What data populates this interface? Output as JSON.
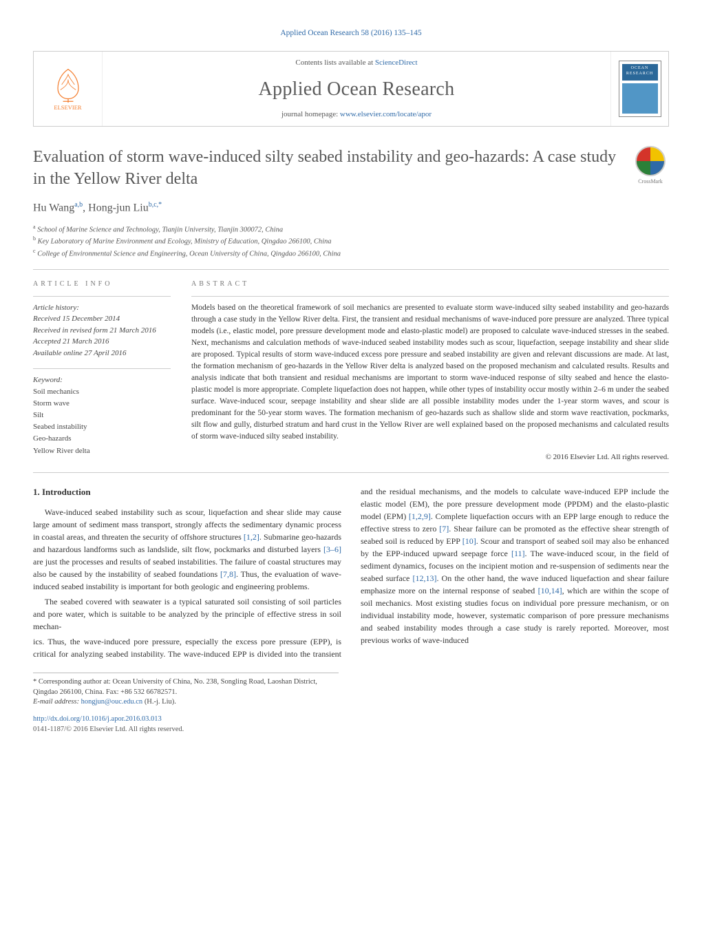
{
  "colors": {
    "link": "#2f6aa8",
    "text": "#333333",
    "muted": "#555555",
    "rule": "#cccccc",
    "elsevier": "#f47b2a"
  },
  "fonts": {
    "body_family": "Georgia, 'Times New Roman', serif",
    "body_size_pt": 9,
    "title_size_pt": 18,
    "journal_size_pt": 21,
    "small_size_pt": 8
  },
  "header": {
    "citation": "Applied Ocean Research 58 (2016) 135–145",
    "contents_prefix": "Contents lists available at ",
    "contents_link": "ScienceDirect",
    "journal": "Applied Ocean Research",
    "homepage_prefix": "journal homepage: ",
    "homepage_link": "www.elsevier.com/locate/apor",
    "publisher_logo_text": "ELSEVIER",
    "cover_text": "OCEAN RESEARCH"
  },
  "crossmark_label": "CrossMark",
  "article": {
    "title": "Evaluation of storm wave-induced silty seabed instability and geo-hazards: A case study in the Yellow River delta",
    "authors_html": "Hu Wang",
    "author1": "Hu Wang",
    "author1_sup": "a,b",
    "author2": "Hong-jun Liu",
    "author2_sup": "b,c,*",
    "affiliations": [
      {
        "sup": "a",
        "text": "School of Marine Science and Technology, Tianjin University, Tianjin 300072, China"
      },
      {
        "sup": "b",
        "text": "Key Laboratory of Marine Environment and Ecology, Ministry of Education, Qingdao 266100, China"
      },
      {
        "sup": "c",
        "text": "College of Environmental Science and Engineering, Ocean University of China, Qingdao 266100, China"
      }
    ]
  },
  "info": {
    "heading": "article info",
    "history_heading": "Article history:",
    "history": [
      "Received 15 December 2014",
      "Received in revised form 21 March 2016",
      "Accepted 21 March 2016",
      "Available online 27 April 2016"
    ],
    "keywords_heading": "Keyword:",
    "keywords": [
      "Soil mechanics",
      "Storm wave",
      "Silt",
      "Seabed instability",
      "Geo-hazards",
      "Yellow River delta"
    ]
  },
  "abstract": {
    "heading": "abstract",
    "body": "Models based on the theoretical framework of soil mechanics are presented to evaluate storm wave-induced silty seabed instability and geo-hazards through a case study in the Yellow River delta. First, the transient and residual mechanisms of wave-induced pore pressure are analyzed. Three typical models (i.e., elastic model, pore pressure development mode and elasto-plastic model) are proposed to calculate wave-induced stresses in the seabed. Next, mechanisms and calculation methods of wave-induced seabed instability modes such as scour, liquefaction, seepage instability and shear slide are proposed. Typical results of storm wave-induced excess pore pressure and seabed instability are given and relevant discussions are made. At last, the formation mechanism of geo-hazards in the Yellow River delta is analyzed based on the proposed mechanism and calculated results. Results and analysis indicate that both transient and residual mechanisms are important to storm wave-induced response of silty seabed and hence the elasto-plastic model is more appropriate. Complete liquefaction does not happen, while other types of instability occur mostly within 2–6 m under the seabed surface. Wave-induced scour, seepage instability and shear slide are all possible instability modes under the 1-year storm waves, and scour is predominant for the 50-year storm waves. The formation mechanism of geo-hazards such as shallow slide and storm wave reactivation, pockmarks, silt flow and gully, disturbed stratum and hard crust in the Yellow River are well explained based on the proposed mechanisms and calculated results of storm wave-induced silty seabed instability.",
    "copyright": "© 2016 Elsevier Ltd. All rights reserved."
  },
  "body": {
    "section_number": "1.",
    "section_title": "Introduction",
    "p1": "Wave-induced seabed instability such as scour, liquefaction and shear slide may cause large amount of sediment mass transport, strongly affects the sedimentary dynamic process in coastal areas, and threaten the security of offshore structures [1,2]. Submarine geo-hazards and hazardous landforms such as landslide, silt flow, pockmarks and disturbed layers [3–6] are just the processes and results of seabed instabilities. The failure of coastal structures may also be caused by the instability of seabed foundations [7,8]. Thus, the evaluation of wave-induced seabed instability is important for both geologic and engineering problems.",
    "p2": "The seabed covered with seawater is a typical saturated soil consisting of soil particles and pore water, which is suitable to be analyzed by the principle of effective stress in soil mechan-",
    "p3": "ics. Thus, the wave-induced pore pressure, especially the excess pore pressure (EPP), is critical for analyzing seabed instability. The wave-induced EPP is divided into the transient and the residual mechanisms, and the models to calculate wave-induced EPP include the elastic model (EM), the pore pressure development mode (PPDM) and the elasto-plastic model (EPM) [1,2,9]. Complete liquefaction occurs with an EPP large enough to reduce the effective stress to zero [7]. Shear failure can be promoted as the effective shear strength of seabed soil is reduced by EPP [10]. Scour and transport of seabed soil may also be enhanced by the EPP-induced upward seepage force [11]. The wave-induced scour, in the field of sediment dynamics, focuses on the incipient motion and re-suspension of sediments near the seabed surface [12,13]. On the other hand, the wave induced liquefaction and shear failure emphasize more on the internal response of seabed [10,14], which are within the scope of soil mechanics. Most existing studies focus on individual pore pressure mechanism, or on individual instability mode, however, systematic comparison of pore pressure mechanisms and seabed instability modes through a case study is rarely reported. Moreover, most previous works of wave-induced",
    "refs": {
      "r12": "[1,2]",
      "r36": "[3–6]",
      "r78": "[7,8]",
      "r129": "[1,2,9]",
      "r7": "[7]",
      "r10": "[10]",
      "r11": "[11]",
      "r1213": "[12,13]",
      "r1014": "[10,14]"
    }
  },
  "footnote": {
    "corr_marker": "*",
    "corr_text": "Corresponding author at: Ocean University of China, No. 238, Songling Road, Laoshan District, Qingdao 266100, China. Fax: +86 532 66782571.",
    "email_label": "E-mail address:",
    "email": "hongjun@ouc.edu.cn",
    "email_owner": "(H.-j. Liu)."
  },
  "doi": {
    "url": "http://dx.doi.org/10.1016/j.apor.2016.03.013",
    "issn_line": "0141-1187/© 2016 Elsevier Ltd. All rights reserved."
  }
}
